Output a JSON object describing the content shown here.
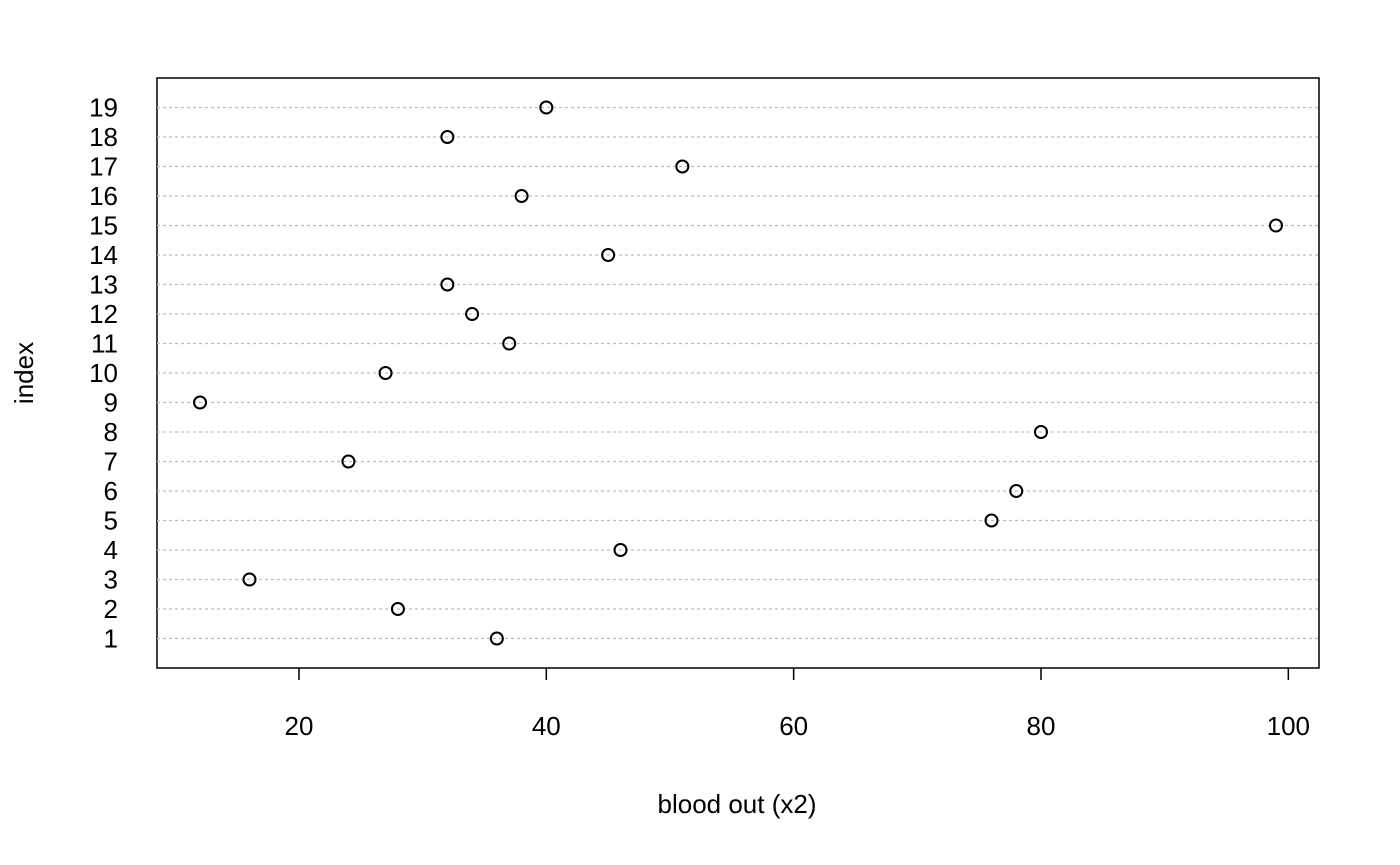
{
  "chart_data": {
    "type": "dot",
    "xlabel": "blood out (x2)",
    "ylabel": "index",
    "categories": [
      "1",
      "2",
      "3",
      "4",
      "5",
      "6",
      "7",
      "8",
      "9",
      "10",
      "11",
      "12",
      "13",
      "14",
      "15",
      "16",
      "17",
      "18",
      "19"
    ],
    "values": [
      36,
      28,
      16,
      46,
      76,
      78,
      24,
      80,
      12,
      27,
      37,
      34,
      32,
      45,
      99,
      38,
      51,
      32,
      40
    ],
    "color": "#000000",
    "xlim": [
      8.52,
      102.48
    ],
    "xticks": [
      20,
      40,
      60,
      80,
      100
    ],
    "grid": true
  }
}
